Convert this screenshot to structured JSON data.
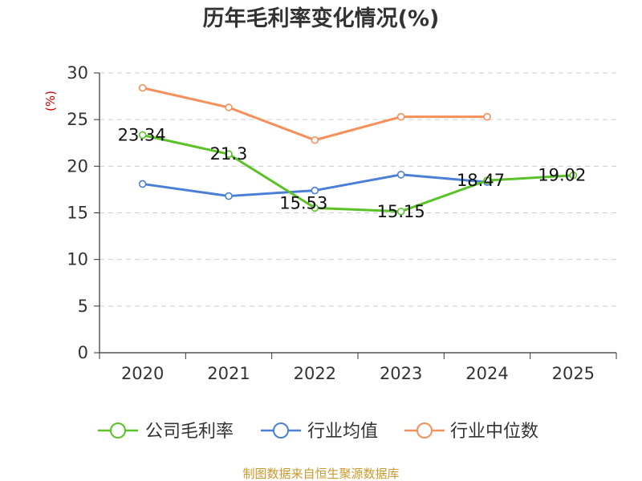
{
  "chart_data": {
    "type": "line",
    "title": "历年毛利率变化情况(%)",
    "ylabel": "(%)",
    "ylim": [
      0,
      30
    ],
    "yticks": [
      0,
      5,
      10,
      15,
      20,
      25,
      30
    ],
    "categories": [
      "2020",
      "2021",
      "2022",
      "2023",
      "2024",
      "2025"
    ],
    "grid": true,
    "legend_position": "bottom",
    "series": [
      {
        "name": "公司毛利率",
        "color": "#5ac227",
        "values": [
          23.34,
          21.3,
          15.53,
          15.15,
          18.47,
          19.02
        ],
        "labels": [
          "23.34",
          "21.3",
          "15.53",
          "15.15",
          "18.47",
          "19.02"
        ]
      },
      {
        "name": "行业均值",
        "color": "#4a7fd8",
        "values": [
          18.1,
          16.8,
          17.4,
          19.1,
          18.3,
          null
        ]
      },
      {
        "name": "行业中位数",
        "color": "#f5905a",
        "values": [
          28.4,
          26.3,
          22.8,
          25.3,
          25.3,
          null
        ]
      }
    ]
  },
  "source": "制图数据来自恒生聚源数据库"
}
